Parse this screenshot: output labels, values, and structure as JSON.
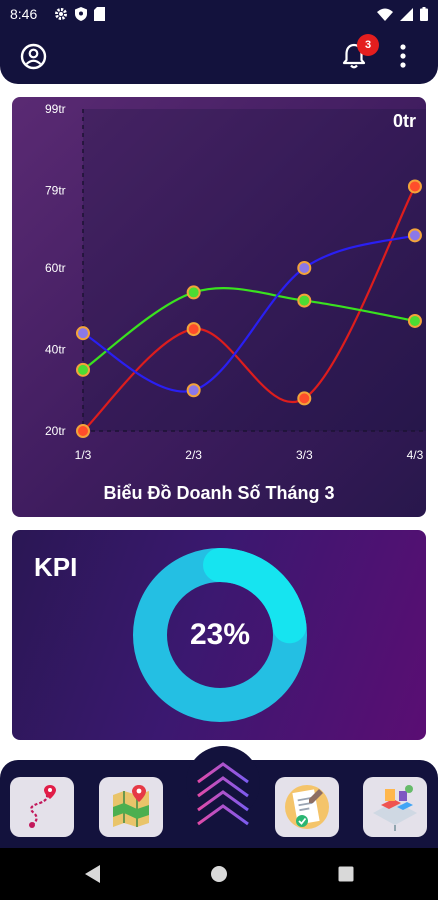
{
  "status_bar": {
    "time": "8:46",
    "left_icons": [
      "gear-icon",
      "shield-icon",
      "sim-card-icon"
    ],
    "right_icons": [
      "wifi-icon",
      "signal-icon",
      "battery-icon"
    ]
  },
  "header": {
    "notification_count": "3",
    "icons": [
      "account-icon",
      "bell-icon",
      "more-vert-icon"
    ]
  },
  "revenue_chart": {
    "total_label": "0tr",
    "title": "Biểu Đồ Doanh Số Tháng 3"
  },
  "chart_data": {
    "type": "line",
    "title": "Biểu Đồ Doanh Số Tháng 3",
    "categories": [
      "1/3",
      "2/3",
      "3/3",
      "4/3"
    ],
    "y_tick_labels": [
      "20tr",
      "40tr",
      "60tr",
      "79tr",
      "99tr"
    ],
    "y_tick_values": [
      20,
      40,
      60,
      79,
      99
    ],
    "ylim": [
      20,
      99
    ],
    "x_range": [
      0,
      3
    ],
    "x_visible_max": 3.1,
    "grid": false,
    "series": [
      {
        "color": "#dd1d1d",
        "marker_fill": "#ff4d2b",
        "values": [
          20,
          45,
          28,
          80
        ]
      },
      {
        "color": "#3ae21f",
        "marker_fill": "#4cdc33",
        "values": [
          35,
          54,
          52,
          47
        ]
      },
      {
        "color": "#2a1ff2",
        "marker_fill": "#8b78e8",
        "values": [
          44,
          30,
          60,
          68
        ]
      }
    ]
  },
  "kpi": {
    "title": "KPI",
    "value_label": "23%",
    "value": 0.23,
    "ring_color": "#24bfe3",
    "highlight_color": "#16e4f0"
  },
  "bottom_nav": {
    "items": [
      "route-map-icon",
      "location-map-icon",
      "home-chevrons-icon",
      "approval-document-icon",
      "workspace-desk-icon"
    ]
  },
  "system_nav": [
    "back-icon",
    "home-icon",
    "recents-icon"
  ]
}
